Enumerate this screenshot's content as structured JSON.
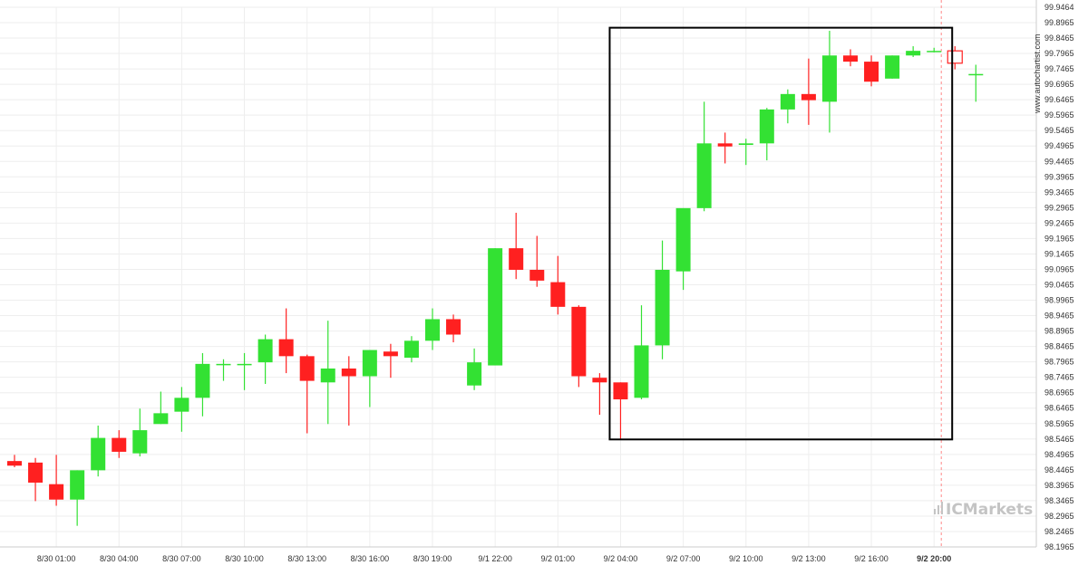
{
  "chart_data": {
    "type": "candlestick",
    "colors": {
      "up": "#33e133",
      "down": "#ff2020",
      "grid": "#eeeeee",
      "axis": "#cccccc",
      "box": "#000000",
      "marker": "#ff8888"
    },
    "ylim": [
      98.1965,
      99.9464
    ],
    "yticks": [
      "99.9464",
      "99.8965",
      "99.8465",
      "99.7965",
      "99.7465",
      "99.6965",
      "99.6465",
      "99.5965",
      "99.5465",
      "99.4965",
      "99.4465",
      "99.3965",
      "99.3465",
      "99.2965",
      "99.2465",
      "99.1965",
      "99.1465",
      "99.0965",
      "99.0465",
      "98.9965",
      "98.9465",
      "98.8965",
      "98.8465",
      "98.7965",
      "98.7465",
      "98.6965",
      "98.6465",
      "98.5965",
      "98.5465",
      "98.4965",
      "98.4465",
      "98.3965",
      "98.3465",
      "98.2965",
      "98.2465",
      "98.1965"
    ],
    "xticks": [
      {
        "label": "8/30 01:00",
        "index": 2
      },
      {
        "label": "8/30 04:00",
        "index": 5
      },
      {
        "label": "8/30 07:00",
        "index": 8
      },
      {
        "label": "8/30 10:00",
        "index": 11
      },
      {
        "label": "8/30 13:00",
        "index": 14
      },
      {
        "label": "8/30 16:00",
        "index": 17
      },
      {
        "label": "8/30 19:00",
        "index": 20
      },
      {
        "label": "9/1 22:00",
        "index": 23
      },
      {
        "label": "9/2 01:00",
        "index": 26
      },
      {
        "label": "9/2 04:00",
        "index": 29
      },
      {
        "label": "9/2 07:00",
        "index": 32
      },
      {
        "label": "9/2 10:00",
        "index": 35
      },
      {
        "label": "9/2 13:00",
        "index": 38
      },
      {
        "label": "9/2 16:00",
        "index": 41
      },
      {
        "label": "9/2 20:00",
        "index": 44
      }
    ],
    "candles": [
      {
        "o": 98.475,
        "h": 98.495,
        "l": 98.455,
        "c": 98.46
      },
      {
        "o": 98.47,
        "h": 98.485,
        "l": 98.345,
        "c": 98.405
      },
      {
        "o": 98.4,
        "h": 98.495,
        "l": 98.33,
        "c": 98.35
      },
      {
        "o": 98.35,
        "h": 98.445,
        "l": 98.265,
        "c": 98.445
      },
      {
        "o": 98.445,
        "h": 98.59,
        "l": 98.425,
        "c": 98.55
      },
      {
        "o": 98.55,
        "h": 98.575,
        "l": 98.485,
        "c": 98.505
      },
      {
        "o": 98.5,
        "h": 98.645,
        "l": 98.49,
        "c": 98.575
      },
      {
        "o": 98.595,
        "h": 98.7,
        "l": 98.595,
        "c": 98.63
      },
      {
        "o": 98.635,
        "h": 98.715,
        "l": 98.57,
        "c": 98.68
      },
      {
        "o": 98.68,
        "h": 98.825,
        "l": 98.62,
        "c": 98.79
      },
      {
        "o": 98.79,
        "h": 98.805,
        "l": 98.735,
        "c": 98.79
      },
      {
        "o": 98.79,
        "h": 98.825,
        "l": 98.705,
        "c": 98.79
      },
      {
        "o": 98.795,
        "h": 98.885,
        "l": 98.725,
        "c": 98.87
      },
      {
        "o": 98.87,
        "h": 98.97,
        "l": 98.76,
        "c": 98.815
      },
      {
        "o": 98.815,
        "h": 98.82,
        "l": 98.565,
        "c": 98.735
      },
      {
        "o": 98.73,
        "h": 98.93,
        "l": 98.595,
        "c": 98.775
      },
      {
        "o": 98.775,
        "h": 98.815,
        "l": 98.59,
        "c": 98.75
      },
      {
        "o": 98.75,
        "h": 98.835,
        "l": 98.65,
        "c": 98.835
      },
      {
        "o": 98.83,
        "h": 98.855,
        "l": 98.745,
        "c": 98.815
      },
      {
        "o": 98.81,
        "h": 98.88,
        "l": 98.795,
        "c": 98.865
      },
      {
        "o": 98.865,
        "h": 98.97,
        "l": 98.835,
        "c": 98.935
      },
      {
        "o": 98.935,
        "h": 98.95,
        "l": 98.86,
        "c": 98.885
      },
      {
        "o": 98.72,
        "h": 98.84,
        "l": 98.705,
        "c": 98.795
      },
      {
        "o": 98.785,
        "h": 99.165,
        "l": 98.785,
        "c": 99.165
      },
      {
        "o": 99.165,
        "h": 99.28,
        "l": 99.065,
        "c": 99.095
      },
      {
        "o": 99.095,
        "h": 99.205,
        "l": 99.04,
        "c": 99.06
      },
      {
        "o": 99.055,
        "h": 99.14,
        "l": 98.95,
        "c": 98.975
      },
      {
        "o": 98.975,
        "h": 98.98,
        "l": 98.715,
        "c": 98.75
      },
      {
        "o": 98.745,
        "h": 98.76,
        "l": 98.625,
        "c": 98.73
      },
      {
        "o": 98.73,
        "h": 98.73,
        "l": 98.545,
        "c": 98.675
      },
      {
        "o": 98.68,
        "h": 98.98,
        "l": 98.675,
        "c": 98.85
      },
      {
        "o": 98.85,
        "h": 99.19,
        "l": 98.805,
        "c": 99.095
      },
      {
        "o": 99.09,
        "h": 99.295,
        "l": 99.03,
        "c": 99.295
      },
      {
        "o": 99.295,
        "h": 99.64,
        "l": 99.285,
        "c": 99.505
      },
      {
        "o": 99.505,
        "h": 99.54,
        "l": 99.44,
        "c": 99.495
      },
      {
        "o": 99.5,
        "h": 99.52,
        "l": 99.435,
        "c": 99.505
      },
      {
        "o": 99.505,
        "h": 99.62,
        "l": 99.45,
        "c": 99.615
      },
      {
        "o": 99.615,
        "h": 99.68,
        "l": 99.57,
        "c": 99.665
      },
      {
        "o": 99.665,
        "h": 99.78,
        "l": 99.565,
        "c": 99.645
      },
      {
        "o": 99.64,
        "h": 99.87,
        "l": 99.54,
        "c": 99.79
      },
      {
        "o": 99.79,
        "h": 99.81,
        "l": 99.755,
        "c": 99.77
      },
      {
        "o": 99.77,
        "h": 99.79,
        "l": 99.69,
        "c": 99.705
      },
      {
        "o": 99.715,
        "h": 99.79,
        "l": 99.715,
        "c": 99.79
      },
      {
        "o": 99.79,
        "h": 99.82,
        "l": 99.785,
        "c": 99.805
      },
      {
        "o": 99.805,
        "h": 99.815,
        "l": 99.8,
        "c": 99.805
      },
      {
        "o": 99.805,
        "h": 99.82,
        "l": 99.745,
        "c": 99.765
      },
      {
        "o": 99.73,
        "h": 99.76,
        "l": 99.64,
        "c": 99.73
      }
    ],
    "highlight_box": {
      "from_index": 29,
      "to_index": 44,
      "low": 98.545,
      "high": 99.88
    },
    "marker_index": 44,
    "bold_xtick_index": 44
  },
  "watermark": {
    "url": "www.autochartist.com",
    "brand": "ICMarkets"
  }
}
